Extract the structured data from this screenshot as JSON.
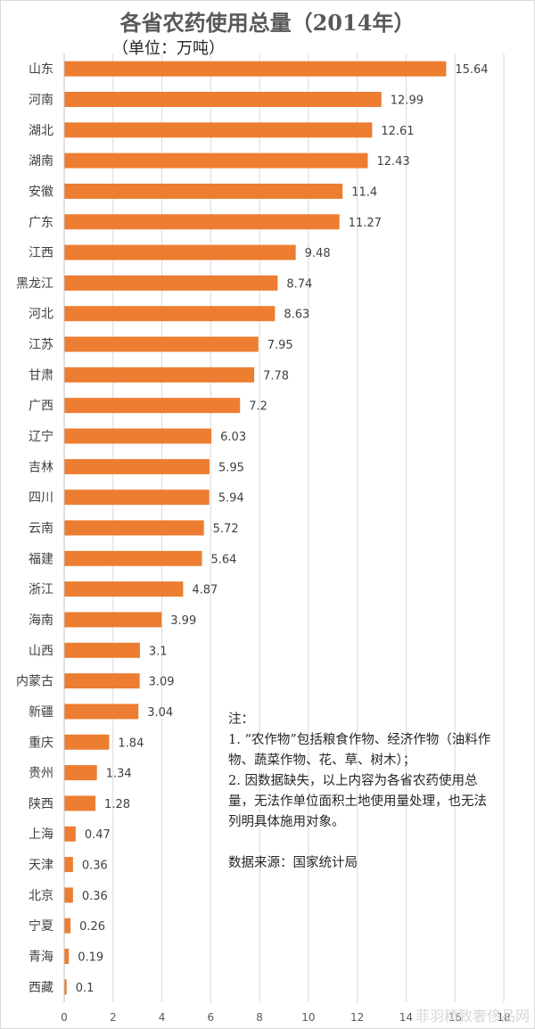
{
  "chart_data": {
    "type": "bar",
    "orientation": "horizontal",
    "title": "各省农药使用总量（2014年）",
    "subtitle": "（单位：万吨）",
    "categories": [
      "山东",
      "河南",
      "湖北",
      "湖南",
      "安徽",
      "广东",
      "江西",
      "黑龙江",
      "河北",
      "江苏",
      "甘肃",
      "广西",
      "辽宁",
      "吉林",
      "四川",
      "云南",
      "福建",
      "浙江",
      "海南",
      "山西",
      "内蒙古",
      "新疆",
      "重庆",
      "贵州",
      "陕西",
      "上海",
      "天津",
      "北京",
      "宁夏",
      "青海",
      "西藏"
    ],
    "values": [
      15.64,
      12.99,
      12.61,
      12.43,
      11.4,
      11.27,
      9.48,
      8.74,
      8.63,
      7.95,
      7.78,
      7.2,
      6.03,
      5.95,
      5.94,
      5.72,
      5.64,
      4.87,
      3.99,
      3.1,
      3.09,
      3.04,
      1.84,
      1.34,
      1.28,
      0.47,
      0.36,
      0.36,
      0.26,
      0.19,
      0.1
    ],
    "xlim": [
      0,
      18
    ],
    "xticks": [
      0,
      2,
      4,
      6,
      8,
      10,
      12,
      14,
      16,
      18
    ],
    "grid": true,
    "bar_color": "#ED7D31"
  },
  "notes": {
    "heading": "注：",
    "line1": "1. “农作物”包括粮食作物、经济作物（油料作物、蔬菜作物、花、草、树木）；",
    "line2": "2. 因数据缺失，以上内容为各省农药使用总量，无法作单位面积土地使用量处理，也无法列明具体施用对象。",
    "source": "数据来源：国家统计局"
  },
  "watermark": "菲羽精致奢侈品网"
}
